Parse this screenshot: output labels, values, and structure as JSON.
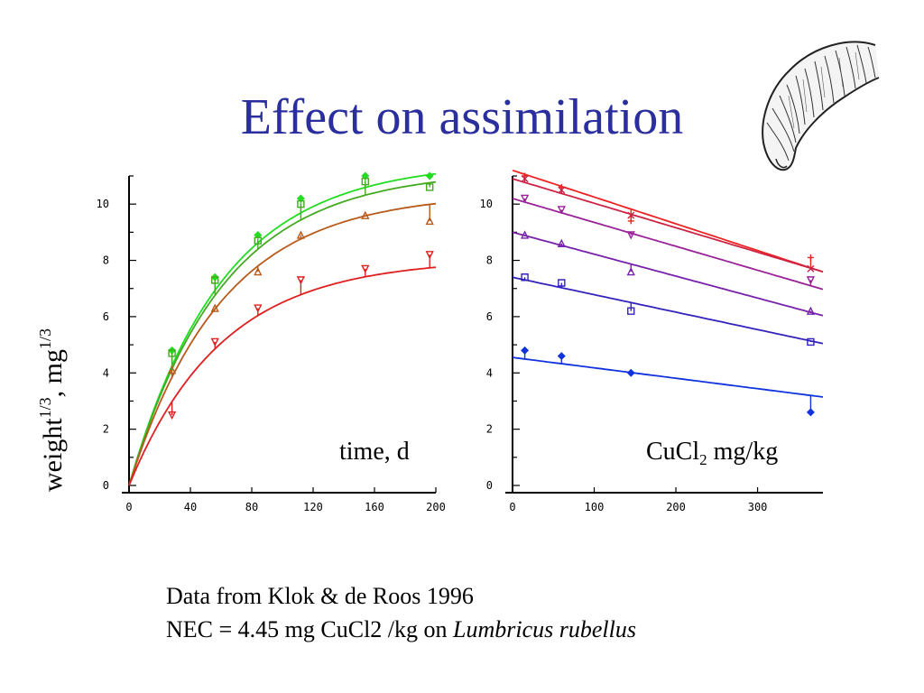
{
  "title": "Effect on assimilation",
  "ylabel": {
    "text": "weight",
    "sup1": "1/3",
    "sep": ", mg",
    "sup2": "1/3"
  },
  "caption": {
    "line1": "Data from Klok & de Roos 1996",
    "line2_prefix": "NEC = 4.45 mg CuCl2 /kg on ",
    "line2_species": "Lumbricus rubellus"
  },
  "chart_data": [
    {
      "type": "line",
      "xlabel": "time, d",
      "xlim": [
        0,
        200
      ],
      "ylim": [
        0,
        11
      ],
      "xticks": [
        0,
        40,
        80,
        120,
        160,
        200
      ],
      "yticks": [
        0,
        2,
        4,
        6,
        8,
        10
      ],
      "grid": false,
      "series": [
        {
          "color": "#22dd22",
          "marker": "diamond",
          "x": [
            28,
            56,
            84,
            112,
            154,
            196
          ],
          "y": [
            4.8,
            7.4,
            8.9,
            10.2,
            11.0,
            11.0
          ],
          "fit": {
            "asymptote": 11.5,
            "rate": 0.0165
          }
        },
        {
          "color": "#44aa22",
          "marker": "square",
          "x": [
            28,
            56,
            84,
            112,
            154,
            196
          ],
          "y": [
            4.7,
            7.3,
            8.7,
            10.0,
            10.8,
            10.6
          ],
          "fit": {
            "asymptote": 11.2,
            "rate": 0.0165
          }
        },
        {
          "color": "#b85a1a",
          "marker": "triangle-up",
          "x": [
            28,
            56,
            84,
            112,
            154,
            196
          ],
          "y": [
            4.1,
            6.3,
            7.6,
            8.9,
            9.6,
            9.4
          ],
          "fit": {
            "asymptote": 10.4,
            "rate": 0.0165
          }
        },
        {
          "color": "#e02020",
          "marker": "triangle-down",
          "x": [
            28,
            56,
            84,
            112,
            154,
            196
          ],
          "y": [
            2.5,
            5.1,
            6.3,
            7.3,
            7.7,
            8.2
          ],
          "fit": {
            "asymptote": 8.05,
            "rate": 0.0165
          }
        }
      ]
    },
    {
      "type": "line",
      "xlabel_base": "CuCl",
      "xlabel_sub": "2",
      "xlabel_unit": " mg/kg",
      "xlim": [
        0,
        380
      ],
      "ylim": [
        0,
        11
      ],
      "xticks": [
        0,
        100,
        200,
        300
      ],
      "yticks": [
        0,
        2,
        4,
        6,
        8,
        10
      ],
      "grid": false,
      "series": [
        {
          "color": "#ee2222",
          "marker": "plus",
          "x": [
            15,
            60,
            145,
            365
          ],
          "y": [
            11.0,
            10.6,
            9.4,
            8.1
          ],
          "fit": {
            "intercept": 11.2,
            "slope": -0.0095
          }
        },
        {
          "color": "#cc2244",
          "marker": "cross",
          "x": [
            15,
            60,
            145,
            365
          ],
          "y": [
            10.9,
            10.5,
            9.6,
            7.7
          ],
          "fit": {
            "intercept": 10.9,
            "slope": -0.0087
          }
        },
        {
          "color": "#992299",
          "marker": "triangle-down",
          "x": [
            15,
            60,
            145,
            365
          ],
          "y": [
            10.2,
            9.8,
            8.9,
            7.3
          ],
          "fit": {
            "intercept": 10.2,
            "slope": -0.0085
          }
        },
        {
          "color": "#7722aa",
          "marker": "triangle-up",
          "x": [
            15,
            60,
            145,
            365
          ],
          "y": [
            8.9,
            8.6,
            7.6,
            6.2
          ],
          "fit": {
            "intercept": 9.0,
            "slope": -0.0078
          }
        },
        {
          "color": "#3322bb",
          "marker": "square",
          "x": [
            15,
            60,
            145,
            365
          ],
          "y": [
            7.4,
            7.2,
            6.2,
            5.1
          ],
          "fit": {
            "intercept": 7.4,
            "slope": -0.0062
          }
        },
        {
          "color": "#1133dd",
          "marker": "diamond",
          "x": [
            15,
            60,
            145,
            365
          ],
          "y": [
            4.8,
            4.6,
            4.0,
            2.6
          ],
          "fit": {
            "intercept": 4.55,
            "slope": -0.0037
          }
        }
      ]
    }
  ]
}
